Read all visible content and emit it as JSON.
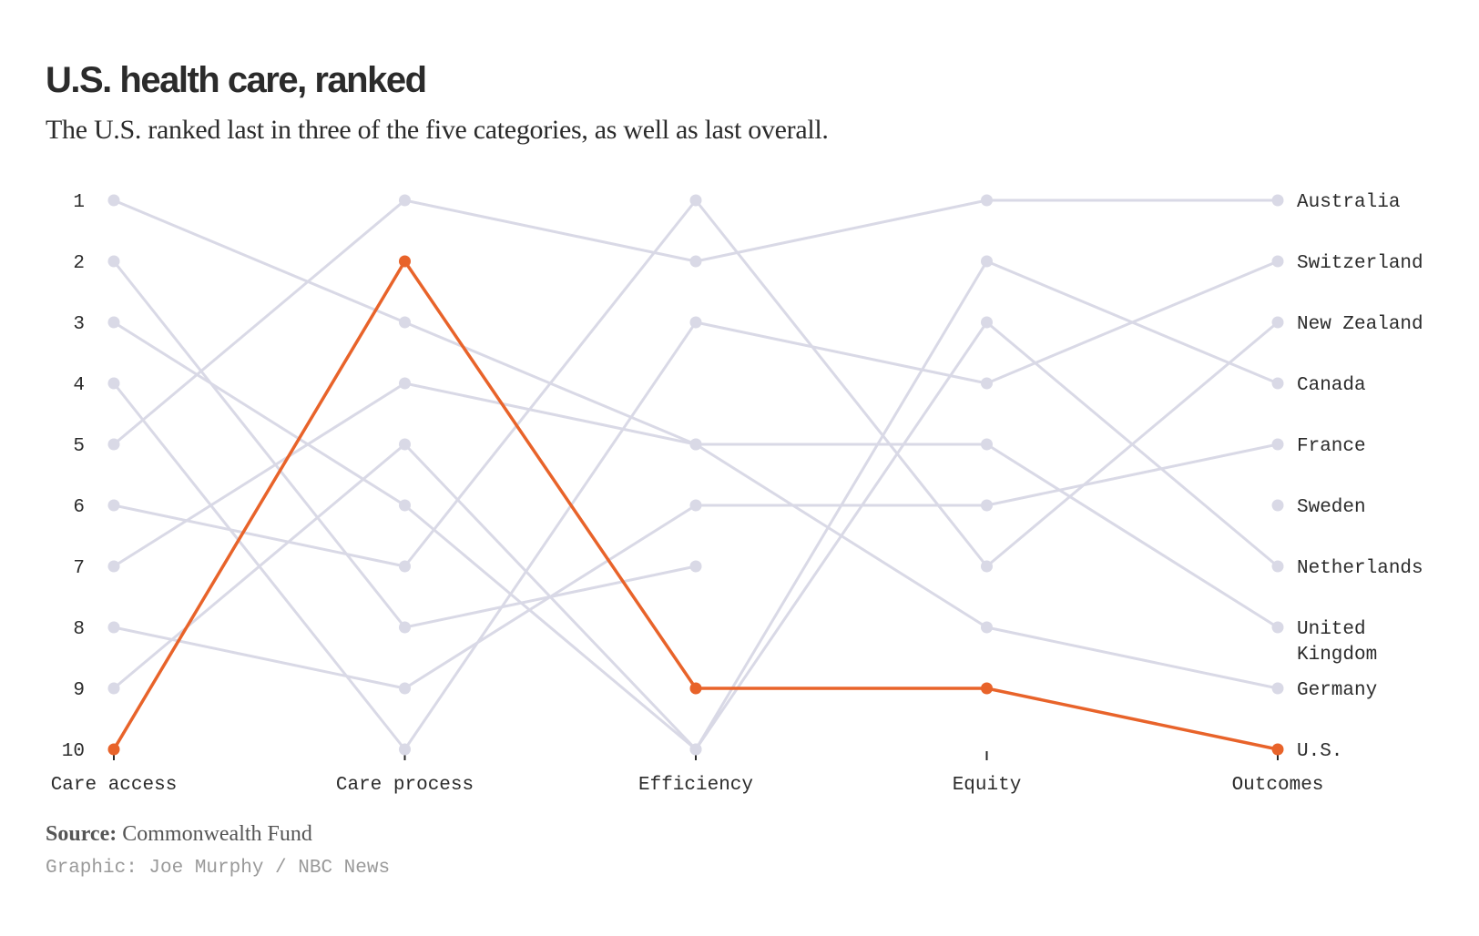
{
  "title": "U.S. health care, ranked",
  "subtitle": "The U.S. ranked last in three of the five categories, as well as last overall.",
  "source": {
    "label": "Source:",
    "text": "Commonwealth Fund"
  },
  "credit": "Graphic: Joe Murphy / NBC News",
  "colors": {
    "highlight": "#e8632a",
    "muted": "#d9d9e6",
    "text": "#2b2b2b"
  },
  "chart_data": {
    "type": "line",
    "categories": [
      "Care access",
      "Care process",
      "Efficiency",
      "Equity",
      "Outcomes"
    ],
    "ylim": [
      1,
      10
    ],
    "y_inverted": true,
    "yticks": [
      "1",
      "2",
      "3",
      "4",
      "5",
      "6",
      "7",
      "8",
      "9",
      "10"
    ],
    "highlight_series": "U.S.",
    "series": [
      {
        "name": "Australia",
        "values": [
          5,
          1,
          2,
          1,
          1
        ]
      },
      {
        "name": "Switzerland",
        "values": [
          4,
          10,
          3,
          4,
          2
        ]
      },
      {
        "name": "New Zealand",
        "values": [
          6,
          7,
          1,
          7,
          3
        ]
      },
      {
        "name": "Canada",
        "values": [
          9,
          5,
          10,
          2,
          4
        ]
      },
      {
        "name": "France",
        "values": [
          8,
          9,
          6,
          6,
          5
        ]
      },
      {
        "name": "Sweden",
        "values": [
          2,
          8,
          7,
          null,
          6
        ]
      },
      {
        "name": "Netherlands",
        "values": [
          3,
          6,
          10,
          3,
          7
        ]
      },
      {
        "name": "United Kingdom",
        "values": [
          1,
          3,
          5,
          5,
          8
        ]
      },
      {
        "name": "Germany",
        "values": [
          7,
          4,
          5,
          8,
          9
        ]
      },
      {
        "name": "U.S.",
        "values": [
          10,
          2,
          9,
          9,
          10
        ]
      }
    ]
  }
}
